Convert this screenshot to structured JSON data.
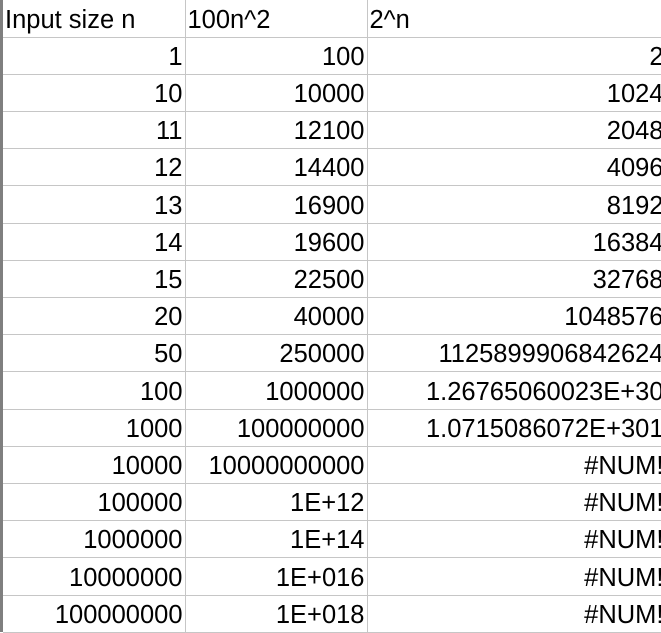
{
  "sheet": {
    "headers": [
      "Input size n",
      "100n^2",
      "2^n"
    ],
    "rows": [
      [
        "1",
        "100",
        "2"
      ],
      [
        "10",
        "10000",
        "1024"
      ],
      [
        "11",
        "12100",
        "2048"
      ],
      [
        "12",
        "14400",
        "4096"
      ],
      [
        "13",
        "16900",
        "8192"
      ],
      [
        "14",
        "19600",
        "16384"
      ],
      [
        "15",
        "22500",
        "32768"
      ],
      [
        "20",
        "40000",
        "1048576"
      ],
      [
        "50",
        "250000",
        "1125899906842624"
      ],
      [
        "100",
        "1000000",
        "1.26765060023E+30"
      ],
      [
        "1000",
        "100000000",
        "1.0715086072E+301"
      ],
      [
        "10000",
        "10000000000",
        "#NUM!"
      ],
      [
        "100000",
        "1E+12",
        "#NUM!"
      ],
      [
        "1000000",
        "1E+14",
        "#NUM!"
      ],
      [
        "10000000",
        "1E+016",
        "#NUM!"
      ],
      [
        "100000000",
        "1E+018",
        "#NUM!"
      ]
    ]
  }
}
